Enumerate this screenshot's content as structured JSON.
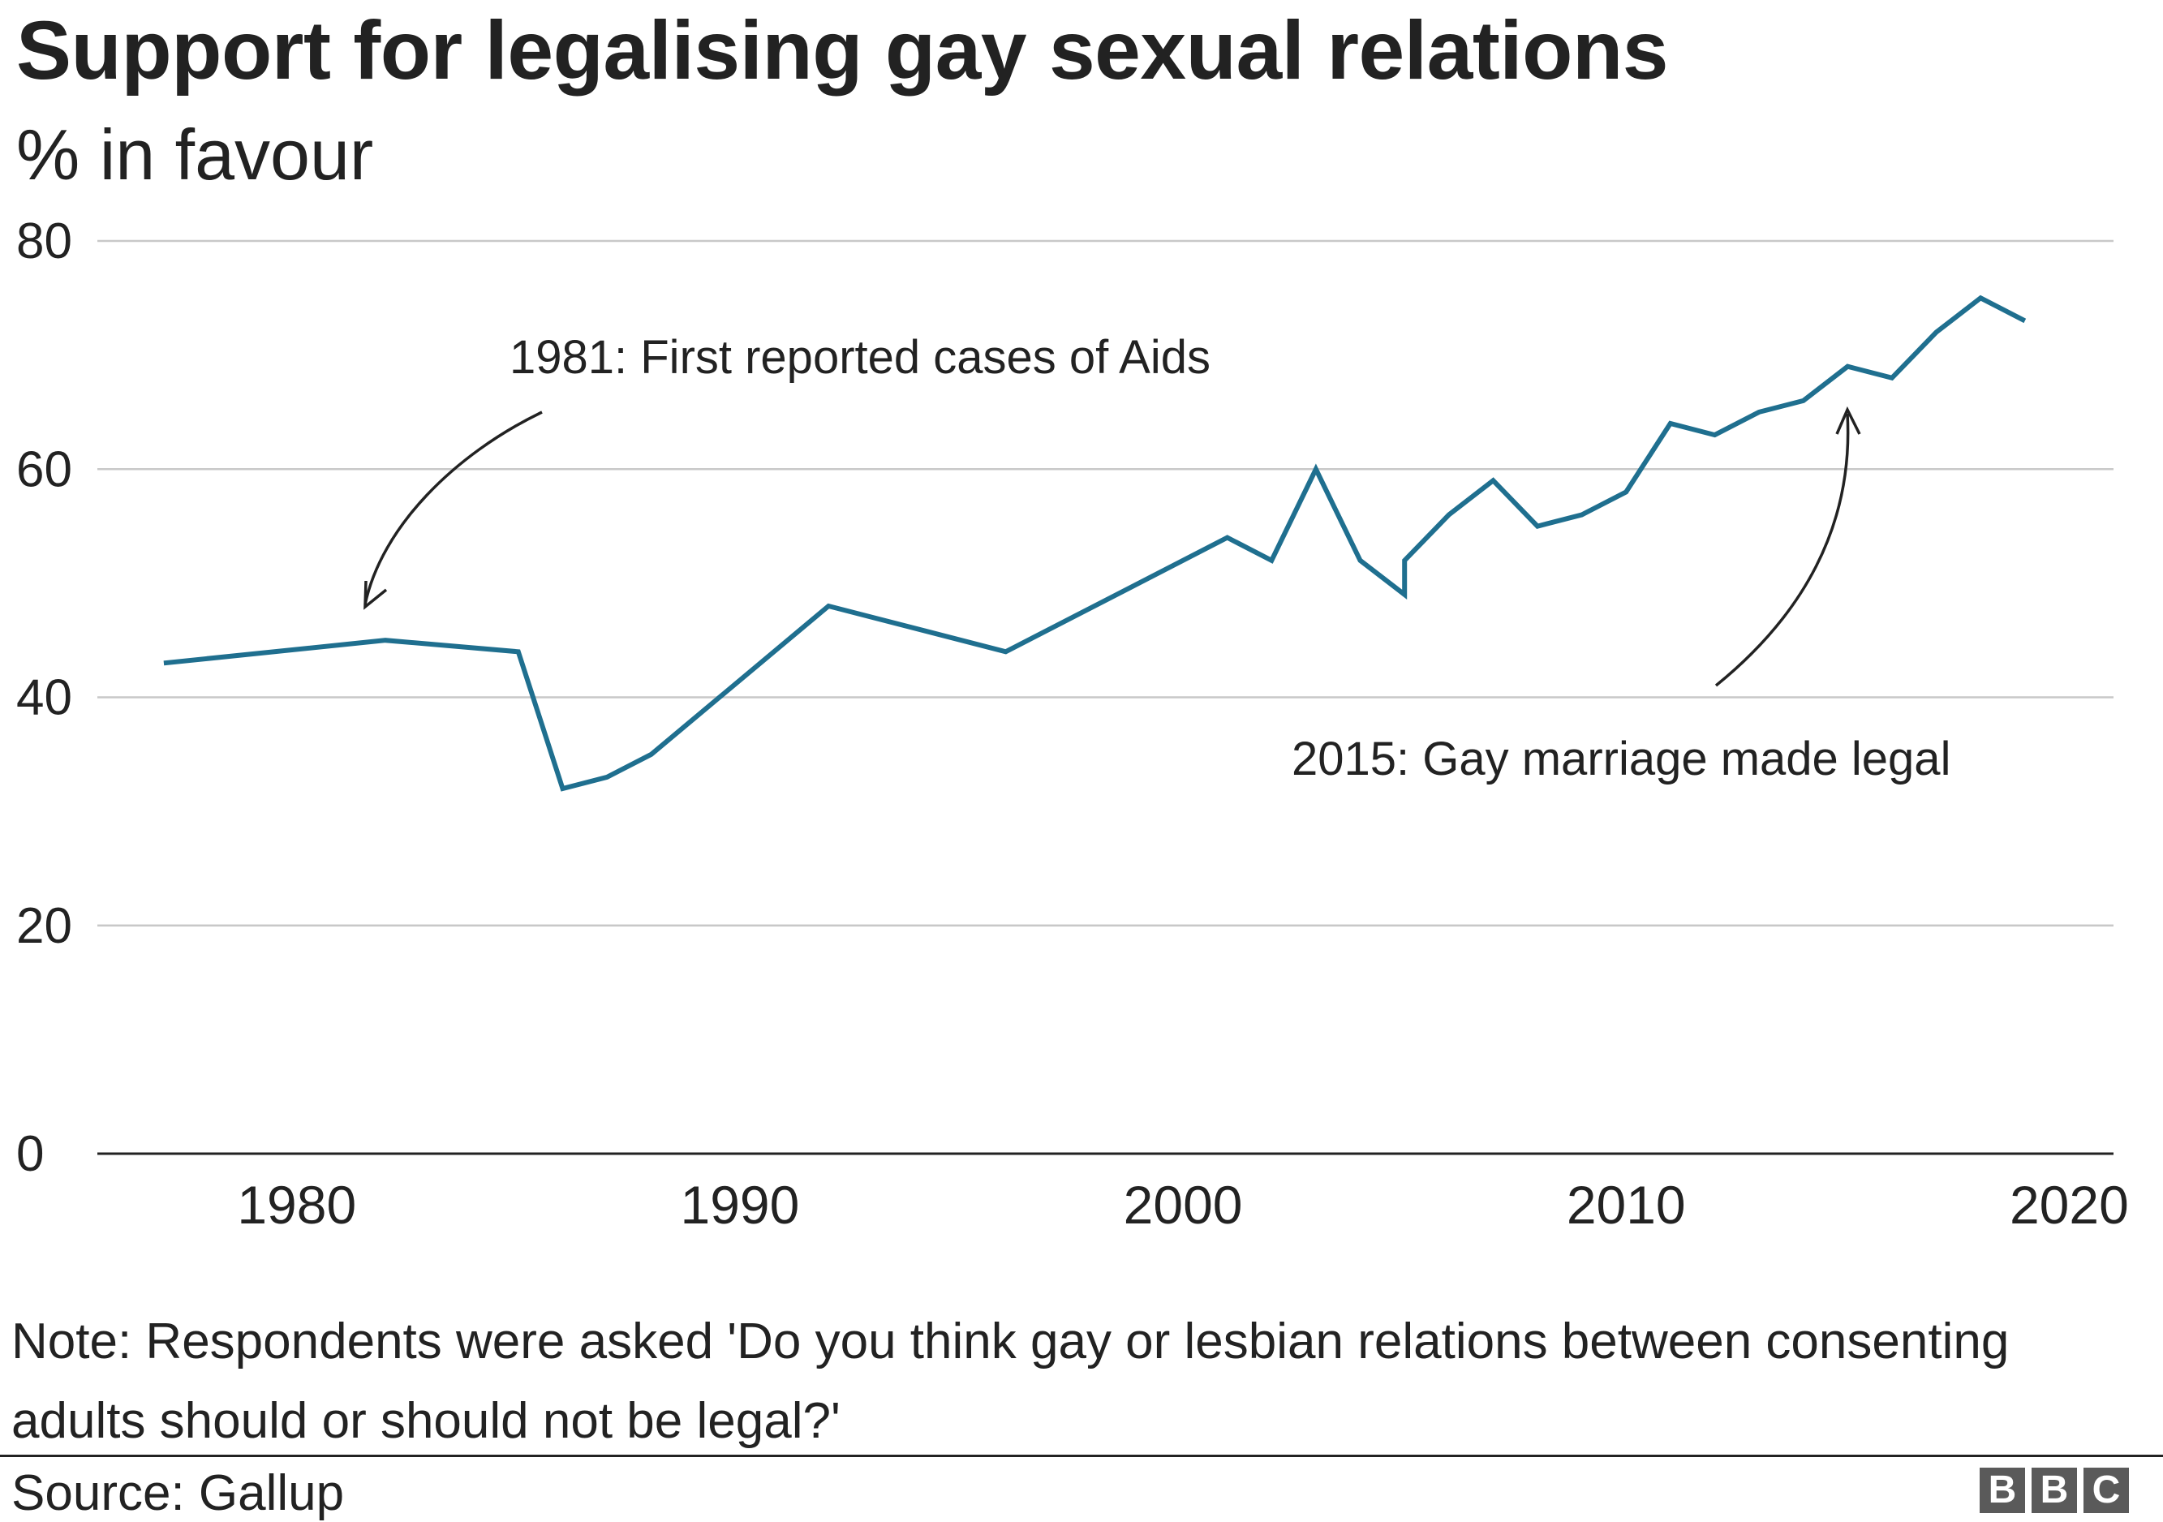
{
  "header": {
    "title": "Support for legalising gay sexual relations",
    "subtitle": "% in favour"
  },
  "chart_data": {
    "type": "line",
    "title": "Support for legalising gay sexual relations",
    "subtitle": "% in favour",
    "xlabel": "",
    "ylabel": "% in favour",
    "xlim": [
      1975.5,
      2021
    ],
    "ylim": [
      0,
      80
    ],
    "x_ticks": [
      1980,
      1990,
      2000,
      2010,
      2020
    ],
    "y_ticks": [
      0,
      20,
      40,
      60,
      80
    ],
    "grid": true,
    "color": "#1f6f8f",
    "series": [
      {
        "name": "% in favour",
        "points": [
          [
            1977,
            43
          ],
          [
            1982,
            45
          ],
          [
            1985,
            44
          ],
          [
            1986,
            32
          ],
          [
            1987,
            33
          ],
          [
            1988,
            35
          ],
          [
            1992,
            48
          ],
          [
            1996,
            44
          ],
          [
            2001,
            54
          ],
          [
            2002,
            52
          ],
          [
            2003,
            60
          ],
          [
            2004,
            52
          ],
          [
            2005,
            49
          ],
          [
            2005,
            52
          ],
          [
            2006,
            56
          ],
          [
            2007,
            59
          ],
          [
            2008,
            55
          ],
          [
            2009,
            56
          ],
          [
            2010,
            58
          ],
          [
            2011,
            64
          ],
          [
            2012,
            63
          ],
          [
            2013,
            65
          ],
          [
            2014,
            66
          ],
          [
            2015,
            69
          ],
          [
            2016,
            68
          ],
          [
            2017,
            72
          ],
          [
            2018,
            75
          ],
          [
            2019,
            73
          ]
        ]
      }
    ],
    "annotations": [
      {
        "text": "1981: First reported cases of Aids"
      },
      {
        "text": "2015: Gay marriage made legal"
      }
    ]
  },
  "footer": {
    "note": "Note: Respondents were asked 'Do you think gay or lesbian relations between consenting adults should or should not be legal?'",
    "source": "Source: Gallup",
    "logo": [
      "B",
      "B",
      "C"
    ]
  }
}
